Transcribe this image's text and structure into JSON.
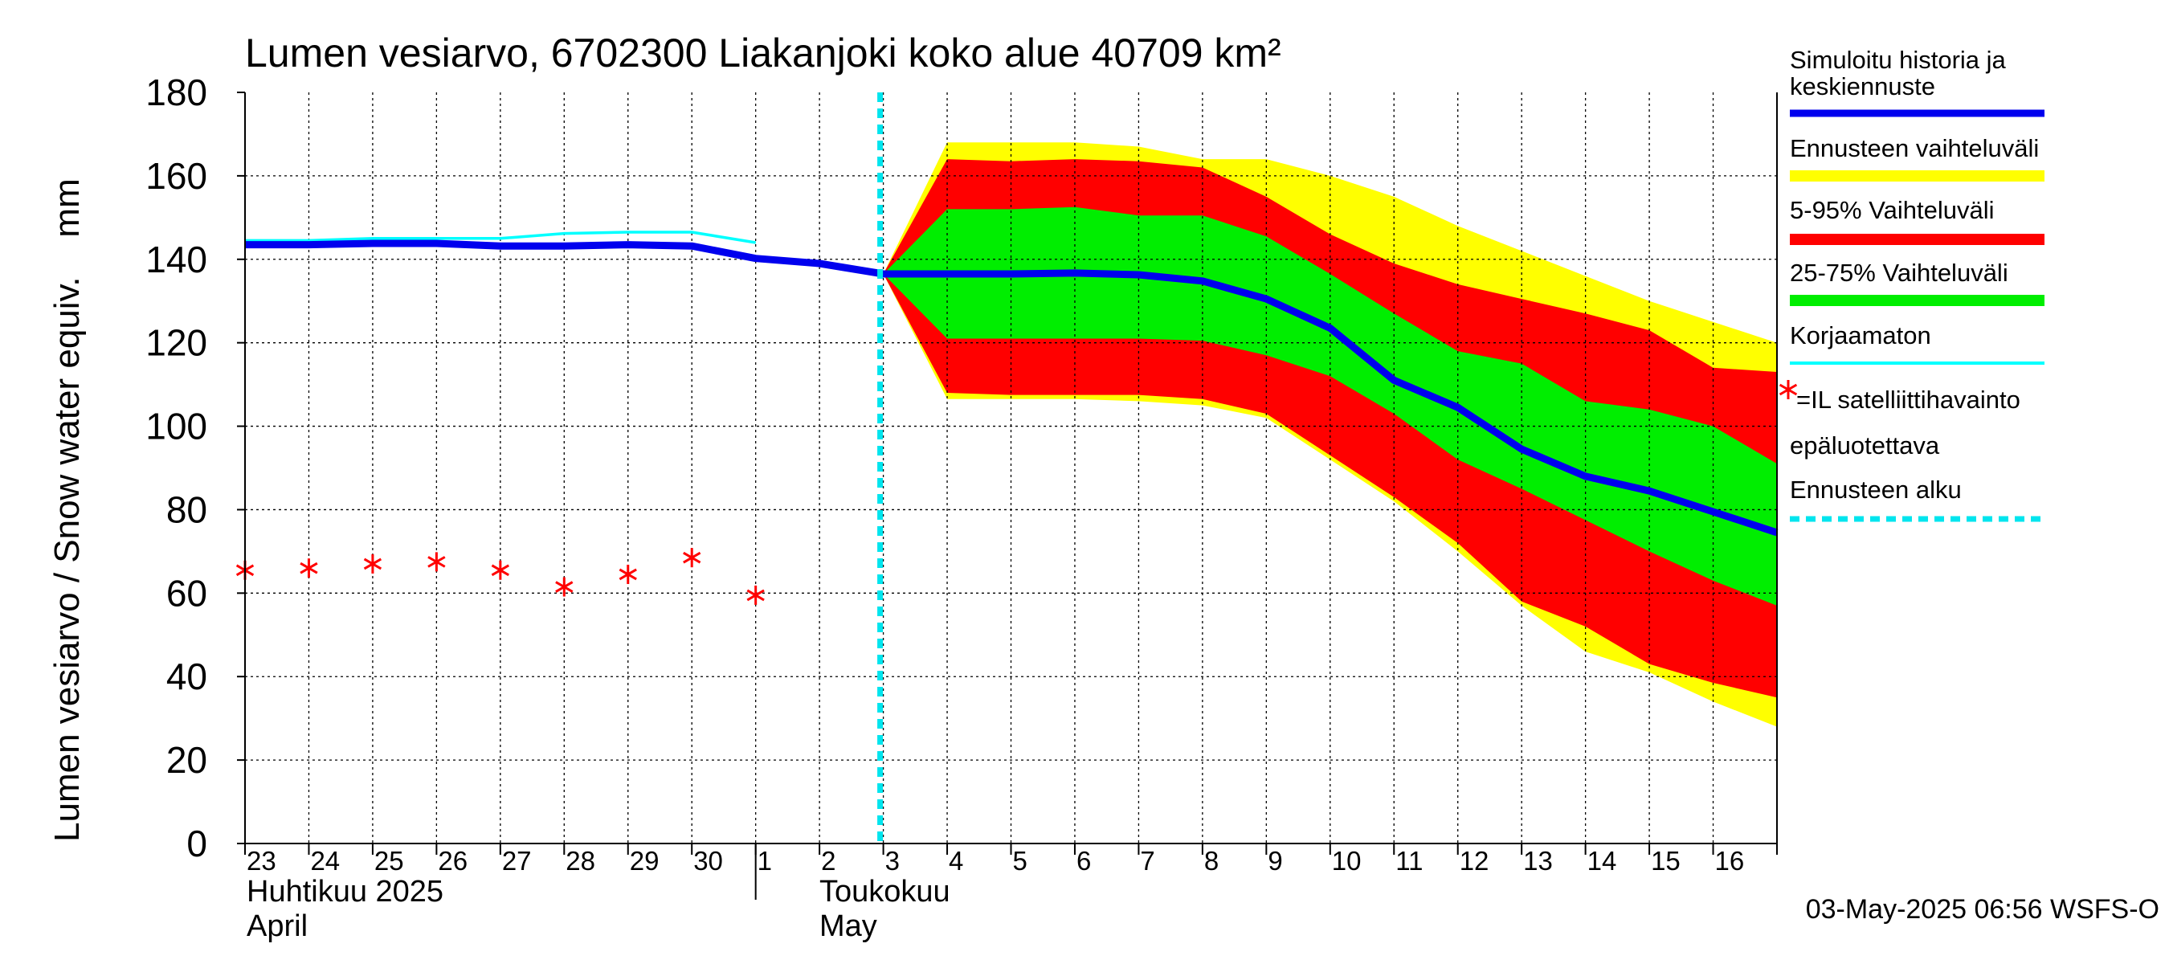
{
  "chart_data": {
    "type": "area",
    "title": "Lumen vesiarvo, 6702300 Liakanjoki koko alue 40709 km²",
    "ylabel": "Lumen vesiarvo / Snow water equiv.    mm",
    "ylim": [
      0,
      180
    ],
    "yticks": [
      0,
      20,
      40,
      60,
      80,
      100,
      120,
      140,
      160,
      180
    ],
    "x_start": "2025-04-23",
    "x_days": 24,
    "day_labels": [
      "23",
      "24",
      "25",
      "26",
      "27",
      "28",
      "29",
      "30",
      "1",
      "2",
      "3",
      "4",
      "5",
      "6",
      "7",
      "8",
      "9",
      "10",
      "11",
      "12",
      "13",
      "14",
      "15",
      "16"
    ],
    "month_labels": [
      {
        "fi": "Huhtikuu  2025",
        "en": "April"
      },
      {
        "fi": "Toukokuu",
        "en": "May"
      }
    ],
    "timestamp": "03-May-2025 06:56 WSFS-O",
    "forecast_start_day": 10,
    "legend": [
      {
        "label": "Simuloitu historia ja",
        "label2": "keskiennuste",
        "color": "#0000ee",
        "kind": "line"
      },
      {
        "label": "Ennusteen vaihteluväli",
        "color": "#ffff00",
        "kind": "band"
      },
      {
        "label": "5-95% Vaihteluväli",
        "color": "#ff0000",
        "kind": "band"
      },
      {
        "label": "25-75% Vaihteluväli",
        "color": "#00ee00",
        "kind": "band"
      },
      {
        "label": "Korjaamaton",
        "color": "#00ffff",
        "kind": "thin"
      },
      {
        "label": "=IL satelliittihavainto",
        "label2": "epäluotettava",
        "color": "#ff0000",
        "kind": "star"
      },
      {
        "label": "Ennusteen alku",
        "color": "#00e5ee",
        "kind": "dash"
      }
    ],
    "series": [
      {
        "name": "Simuloitu historia ja keskiennuste",
        "x": [
          0,
          1,
          2,
          3,
          4,
          5,
          6,
          7,
          8,
          9,
          10,
          11,
          12,
          13,
          14,
          15,
          16,
          17,
          18,
          19,
          20,
          21,
          22,
          23,
          24
        ],
        "values": [
          143.5,
          143.5,
          143.8,
          143.8,
          143.2,
          143.2,
          143.5,
          143.2,
          140.2,
          139.0,
          136.5,
          136.5,
          136.5,
          136.7,
          136.3,
          134.8,
          130.5,
          123.5,
          111.0,
          104.5,
          94.5,
          88.0,
          84.5,
          79.5,
          74.5
        ]
      },
      {
        "name": "Korjaamaton",
        "x": [
          0,
          1,
          2,
          3,
          4,
          5,
          6,
          7,
          8
        ],
        "values": [
          144.5,
          144.5,
          145.0,
          145.0,
          145.0,
          146.2,
          146.5,
          146.5,
          144.0
        ]
      }
    ],
    "bands": [
      {
        "name": "Ennusteen vaihteluväli",
        "color": "#ffff00",
        "x": [
          10,
          11,
          12,
          13,
          14,
          15,
          16,
          17,
          18,
          19,
          20,
          21,
          22,
          23,
          24
        ],
        "upper": [
          136.5,
          168.0,
          168.0,
          168.0,
          167.0,
          164.0,
          164.0,
          160.0,
          155.0,
          148.0,
          142.0,
          136.0,
          130.0,
          125.0,
          120.0
        ],
        "lower": [
          136.5,
          106.5,
          106.5,
          106.5,
          106.0,
          105.0,
          102.0,
          92.0,
          82.0,
          70.0,
          57.0,
          46.0,
          41.0,
          34.0,
          28.0
        ]
      },
      {
        "name": "5-95% Vaihteluväli",
        "color": "#ff0000",
        "x": [
          10,
          11,
          12,
          13,
          14,
          15,
          16,
          17,
          18,
          19,
          20,
          21,
          22,
          23,
          24
        ],
        "upper": [
          136.5,
          164.0,
          163.5,
          164.0,
          163.5,
          162.0,
          155.0,
          146.0,
          139.0,
          134.0,
          130.5,
          127.0,
          123.0,
          114.0,
          113.0
        ],
        "lower": [
          136.5,
          108.0,
          107.5,
          107.5,
          107.5,
          106.5,
          103.0,
          93.0,
          83.0,
          72.0,
          58.0,
          52.0,
          43.0,
          38.5,
          35.0
        ]
      },
      {
        "name": "25-75% Vaihteluväli",
        "color": "#00ee00",
        "x": [
          10,
          11,
          12,
          13,
          14,
          15,
          16,
          17,
          18,
          19,
          20,
          21,
          22,
          23,
          24
        ],
        "upper": [
          136.5,
          152.0,
          152.0,
          152.5,
          150.5,
          150.5,
          145.5,
          136.5,
          127.0,
          118.0,
          115.0,
          106.0,
          104.0,
          100.0,
          91.0
        ],
        "lower": [
          136.5,
          121.0,
          121.0,
          121.0,
          121.0,
          120.5,
          117.0,
          112.0,
          103.0,
          92.0,
          85.0,
          77.5,
          70.0,
          63.0,
          57.0
        ]
      }
    ],
    "observations": {
      "name": "IL satelliittihavainto",
      "x": [
        0,
        1,
        2,
        3,
        4,
        5,
        6,
        7,
        8
      ],
      "values": [
        65.5,
        66.0,
        67.0,
        67.5,
        65.5,
        61.5,
        64.5,
        68.5,
        59.5
      ]
    }
  }
}
